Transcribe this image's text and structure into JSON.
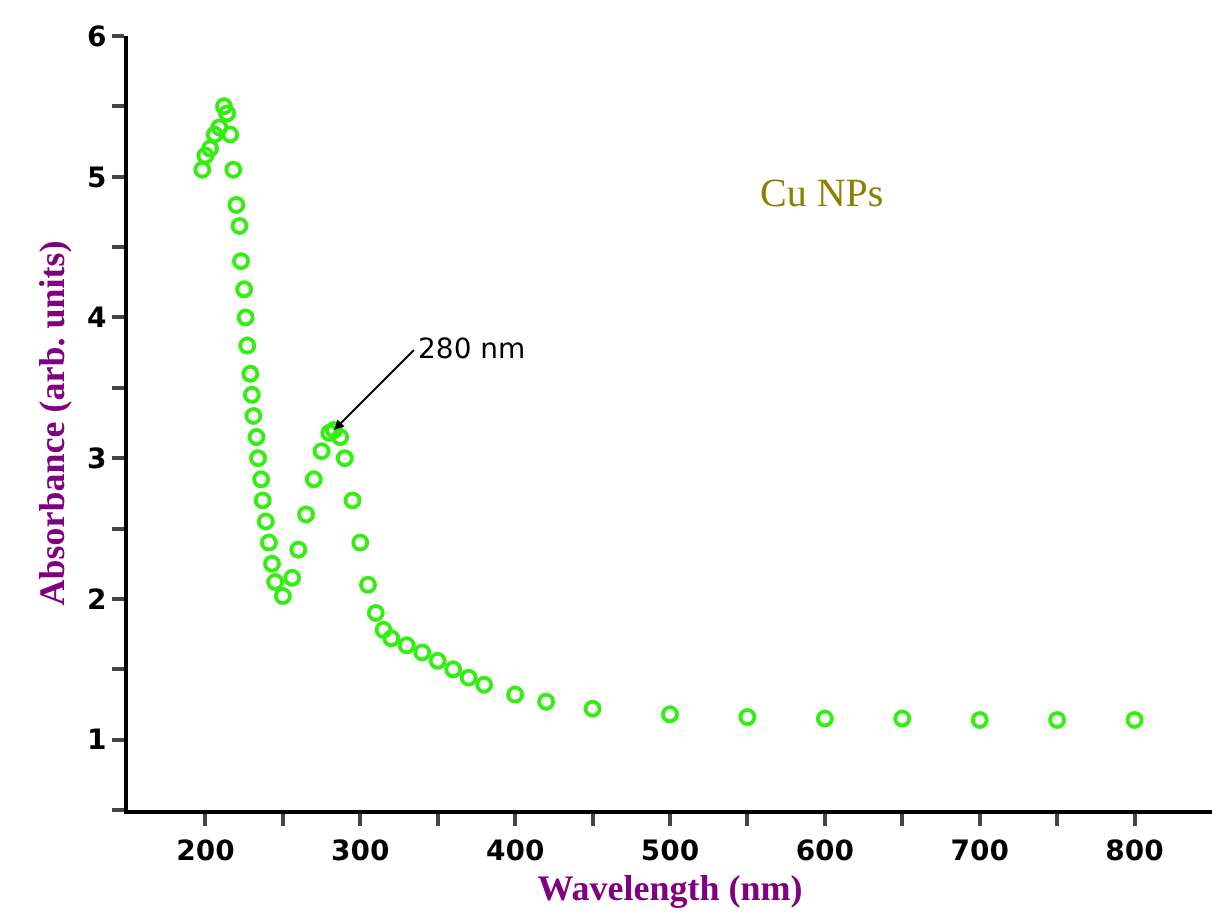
{
  "chart_data": {
    "type": "scatter",
    "xlabel": "Wavelength (nm)",
    "ylabel": "Absorbance (arb. units)",
    "xlim": [
      150,
      850
    ],
    "ylim": [
      0.5,
      6
    ],
    "xticks": [
      200,
      {
        "value": 250,
        "label": null
      },
      300,
      {
        "value": 350,
        "label": null
      },
      400,
      {
        "value": 450,
        "label": null
      },
      500,
      {
        "value": 550,
        "label": null
      },
      600,
      {
        "value": 650,
        "label": null
      },
      700,
      {
        "value": 750,
        "label": null
      },
      800
    ],
    "yticks": [
      {
        "value": 0.5,
        "label": null
      },
      1,
      {
        "value": 1.5,
        "label": null
      },
      2,
      {
        "value": 2.5,
        "label": null
      },
      3,
      {
        "value": 3.5,
        "label": null
      },
      4,
      {
        "value": 4.5,
        "label": null
      },
      5,
      {
        "value": 5.5,
        "label": null
      },
      6
    ],
    "legend": false,
    "marker": "circle",
    "annotations": [
      {
        "text": "280 nm",
        "x": 283,
        "y": 3.2
      },
      "Cu NPs"
    ],
    "series": [
      {
        "color": "#33ee11",
        "x": [
          198,
          200,
          203,
          206,
          209,
          212,
          214,
          216,
          218,
          220,
          222,
          223,
          225,
          226,
          227,
          229,
          230,
          231,
          233,
          234,
          236,
          237,
          239,
          241,
          243,
          245,
          250,
          256,
          260,
          265,
          270,
          275,
          280,
          283,
          287,
          290,
          295,
          300,
          305,
          310,
          315,
          320,
          330,
          340,
          350,
          360,
          370,
          380,
          400,
          420,
          450,
          500,
          550,
          600,
          650,
          700,
          750,
          800
        ],
        "values": [
          5.05,
          5.15,
          5.2,
          5.3,
          5.35,
          5.5,
          5.45,
          5.3,
          5.05,
          4.8,
          4.65,
          4.4,
          4.2,
          4.0,
          3.8,
          3.6,
          3.45,
          3.3,
          3.15,
          3.0,
          2.85,
          2.7,
          2.55,
          2.4,
          2.25,
          2.12,
          2.02,
          2.15,
          2.35,
          2.6,
          2.85,
          3.05,
          3.18,
          3.2,
          3.15,
          3.0,
          2.7,
          2.4,
          2.1,
          1.9,
          1.78,
          1.72,
          1.67,
          1.62,
          1.56,
          1.5,
          1.44,
          1.39,
          1.32,
          1.27,
          1.22,
          1.18,
          1.16,
          1.15,
          1.15,
          1.14,
          1.14,
          1.14
        ]
      }
    ]
  }
}
